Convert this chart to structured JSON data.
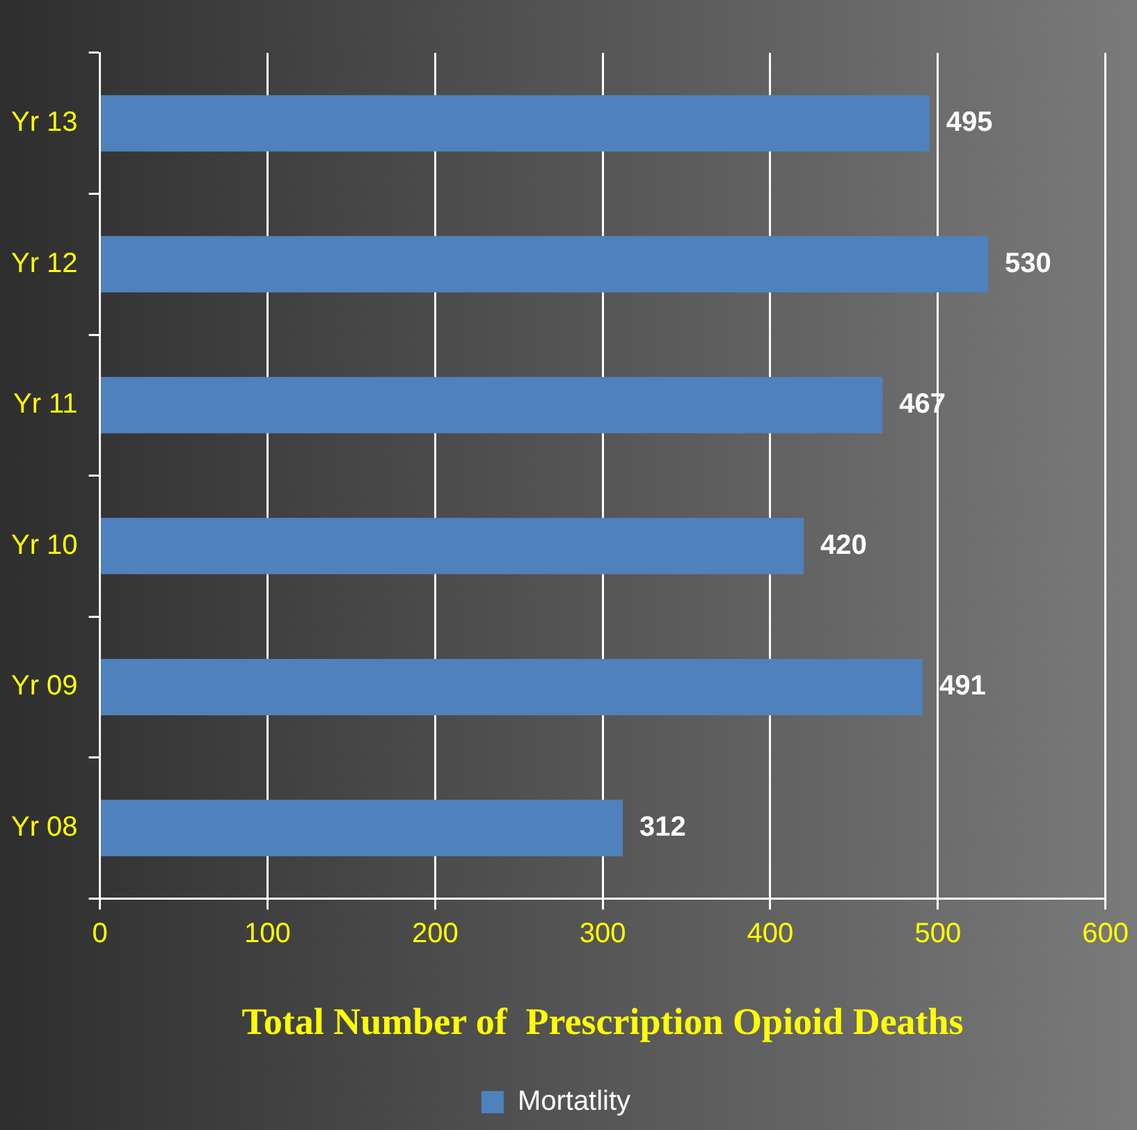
{
  "chart_data": {
    "type": "bar",
    "orientation": "horizontal",
    "xlabel": "Total Number of  Prescription Opioid Deaths",
    "categories": [
      "Yr 13",
      "Yr 12",
      "Yr 11",
      "Yr 10",
      "Yr 09",
      "Yr 08"
    ],
    "series": [
      {
        "name": "Mortatlity",
        "color": "#4f81bd",
        "values": [
          495,
          530,
          467,
          420,
          491,
          312
        ]
      }
    ],
    "xlim": [
      0,
      600
    ],
    "xticks": [
      0,
      100,
      200,
      300,
      400,
      500,
      600
    ],
    "grid": "x",
    "legend": "bottom",
    "data_labels": true
  }
}
